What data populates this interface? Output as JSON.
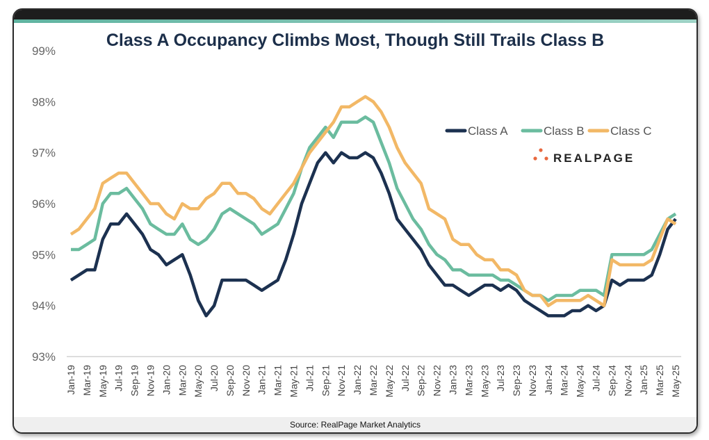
{
  "chart_data": {
    "type": "line",
    "title": "Class A Occupancy Climbs Most, Though Still Trails Class B",
    "source": "Source: RealPage Market Analytics",
    "logo": "REALPAGE",
    "xlabel": "",
    "ylabel": "",
    "ylim": [
      93,
      99
    ],
    "y_ticks": [
      "93%",
      "94%",
      "95%",
      "96%",
      "97%",
      "98%",
      "99%"
    ],
    "grid": false,
    "legend_position": "top-right",
    "x": [
      "Jan-19",
      "Feb-19",
      "Mar-19",
      "Apr-19",
      "May-19",
      "Jun-19",
      "Jul-19",
      "Aug-19",
      "Sep-19",
      "Oct-19",
      "Nov-19",
      "Dec-19",
      "Jan-20",
      "Feb-20",
      "Mar-20",
      "Apr-20",
      "May-20",
      "Jun-20",
      "Jul-20",
      "Aug-20",
      "Sep-20",
      "Oct-20",
      "Nov-20",
      "Dec-20",
      "Jan-21",
      "Feb-21",
      "Mar-21",
      "Apr-21",
      "May-21",
      "Jun-21",
      "Jul-21",
      "Aug-21",
      "Sep-21",
      "Oct-21",
      "Nov-21",
      "Dec-21",
      "Jan-22",
      "Feb-22",
      "Mar-22",
      "Apr-22",
      "May-22",
      "Jun-22",
      "Jul-22",
      "Aug-22",
      "Sep-22",
      "Oct-22",
      "Nov-22",
      "Dec-22",
      "Jan-23",
      "Feb-23",
      "Mar-23",
      "Apr-23",
      "May-23",
      "Jun-23",
      "Jul-23",
      "Aug-23",
      "Sep-23",
      "Oct-23",
      "Nov-23",
      "Dec-23",
      "Jan-24",
      "Feb-24",
      "Mar-24",
      "Apr-24",
      "May-24",
      "Jun-24",
      "Jul-24",
      "Aug-24",
      "Sep-24",
      "Oct-24",
      "Nov-24",
      "Dec-24",
      "Jan-25",
      "Feb-25",
      "Mar-25",
      "Apr-25",
      "May-25"
    ],
    "series": [
      {
        "name": "Class A",
        "color": "#1c3150",
        "values": [
          94.5,
          94.6,
          94.7,
          94.7,
          95.3,
          95.6,
          95.6,
          95.8,
          95.6,
          95.4,
          95.1,
          95.0,
          94.8,
          94.9,
          95.0,
          94.6,
          94.1,
          93.8,
          94.0,
          94.5,
          94.5,
          94.5,
          94.5,
          94.4,
          94.3,
          94.4,
          94.5,
          94.9,
          95.4,
          96.0,
          96.4,
          96.8,
          97.0,
          96.8,
          97.0,
          96.9,
          96.9,
          97.0,
          96.9,
          96.6,
          96.2,
          95.7,
          95.5,
          95.3,
          95.1,
          94.8,
          94.6,
          94.4,
          94.4,
          94.3,
          94.2,
          94.3,
          94.4,
          94.4,
          94.3,
          94.4,
          94.3,
          94.1,
          94.0,
          93.9,
          93.8,
          93.8,
          93.8,
          93.9,
          93.9,
          94.0,
          93.9,
          94.0,
          94.5,
          94.4,
          94.5,
          94.5,
          94.5,
          94.6,
          95.0,
          95.5,
          95.7
        ]
      },
      {
        "name": "Class B",
        "color": "#6bbc9f",
        "values": [
          95.1,
          95.1,
          95.2,
          95.3,
          96.0,
          96.2,
          96.2,
          96.3,
          96.1,
          95.9,
          95.6,
          95.5,
          95.4,
          95.4,
          95.6,
          95.3,
          95.2,
          95.3,
          95.5,
          95.8,
          95.9,
          95.8,
          95.7,
          95.6,
          95.4,
          95.5,
          95.6,
          95.9,
          96.2,
          96.7,
          97.1,
          97.3,
          97.5,
          97.3,
          97.6,
          97.6,
          97.6,
          97.7,
          97.6,
          97.2,
          96.8,
          96.3,
          96.0,
          95.7,
          95.5,
          95.2,
          95.0,
          94.9,
          94.7,
          94.7,
          94.6,
          94.6,
          94.6,
          94.6,
          94.5,
          94.5,
          94.4,
          94.3,
          94.2,
          94.2,
          94.1,
          94.2,
          94.2,
          94.2,
          94.3,
          94.3,
          94.3,
          94.2,
          95.0,
          95.0,
          95.0,
          95.0,
          95.0,
          95.1,
          95.4,
          95.7,
          95.8
        ]
      },
      {
        "name": "Class C",
        "color": "#f2b866",
        "values": [
          95.4,
          95.5,
          95.7,
          95.9,
          96.4,
          96.5,
          96.6,
          96.6,
          96.4,
          96.2,
          96.0,
          96.0,
          95.8,
          95.7,
          96.0,
          95.9,
          95.9,
          96.1,
          96.2,
          96.4,
          96.4,
          96.2,
          96.2,
          96.1,
          95.9,
          95.8,
          96.0,
          96.2,
          96.4,
          96.7,
          97.0,
          97.2,
          97.4,
          97.6,
          97.9,
          97.9,
          98.0,
          98.1,
          98.0,
          97.8,
          97.5,
          97.1,
          96.8,
          96.6,
          96.4,
          95.9,
          95.8,
          95.7,
          95.3,
          95.2,
          95.2,
          95.0,
          94.9,
          94.9,
          94.7,
          94.7,
          94.6,
          94.3,
          94.2,
          94.2,
          94.0,
          94.1,
          94.1,
          94.1,
          94.1,
          94.2,
          94.1,
          94.0,
          94.9,
          94.8,
          94.8,
          94.8,
          94.8,
          94.9,
          95.3,
          95.7,
          95.6
        ]
      }
    ]
  }
}
